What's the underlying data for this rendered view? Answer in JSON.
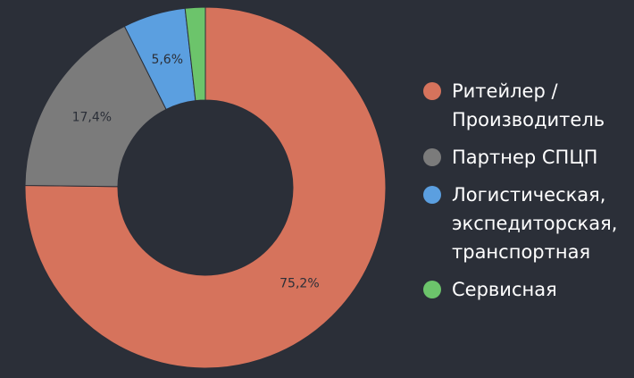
{
  "chart_data": {
    "type": "pie",
    "subtype": "donut",
    "title": "",
    "legend_position": "right",
    "categories": [
      "Ритейлер / Производитель",
      "Партнер СПЦП",
      "Логистическая, экспедиторская, транспортная",
      "Сервисная"
    ],
    "legend_labels": [
      "Ритейлер /\nПроизводитель",
      "Партнер СПЦП",
      "Логистическая,\nэкспедиторская,\nтранспортная",
      "Сервисная"
    ],
    "values": [
      75.2,
      17.4,
      5.6,
      1.8
    ],
    "data_labels": [
      "75,2%",
      "17,4%",
      "5,6%",
      ""
    ],
    "colors": [
      "#d6735c",
      "#7b7b7b",
      "#5b9fe0",
      "#6cc46b"
    ],
    "label_color": "#2b2f38"
  }
}
